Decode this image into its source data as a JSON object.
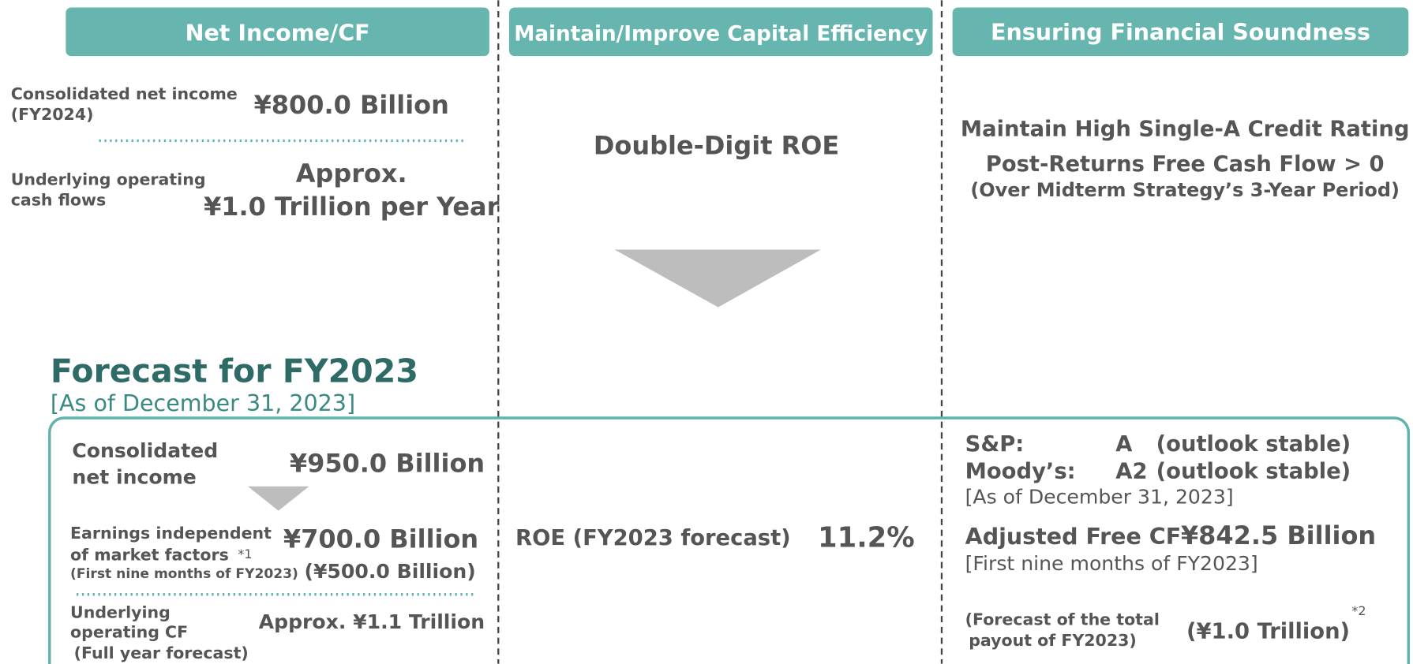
{
  "columns": [
    "Net Income/CF",
    "Maintain/Improve Capital Efficiency",
    "Ensuring Financial Soundness"
  ],
  "targets": {
    "net_income": {
      "label": [
        "Consolidated net income",
        "(FY2024)"
      ],
      "value": "¥800.0 Billion"
    },
    "operating_cf": {
      "label": [
        "Underlying operating",
        "cash flows"
      ],
      "value": [
        "Approx.",
        "¥1.0 Trillion per Year"
      ]
    },
    "roe": "Double-Digit ROE",
    "soundness": [
      "Maintain High Single-A Credit Rating",
      "Post-Returns Free Cash Flow > 0",
      "(Over Midterm Strategy’s 3-Year Period)"
    ]
  },
  "forecast": {
    "title": "Forecast for FY2023",
    "as_of": "[As of December 31, 2023]",
    "net_income": {
      "label": [
        "Consolidated",
        "net income"
      ],
      "value": "¥950.0 Billion"
    },
    "earnings": {
      "label": [
        "Earnings independent",
        "of market factors"
      ],
      "note": "*1",
      "period": "(First nine months of FY2023)",
      "value": "¥700.0 Billion",
      "period_value": "(¥500.0 Billion)"
    },
    "operating_cf": {
      "label": [
        "Underlying",
        "operating CF",
        "(Full year forecast)"
      ],
      "value": "Approx. ¥1.1 Trillion"
    },
    "roe": {
      "label": "ROE (FY2023 forecast)",
      "value": "11.2%"
    },
    "ratings": [
      {
        "agency": "S&P:",
        "rating": "A",
        "outlook": "(outlook stable)"
      },
      {
        "agency": "Moody’s:",
        "rating": "A2",
        "outlook": "(outlook stable)"
      }
    ],
    "ratings_as_of": "[As of December 31, 2023]",
    "free_cf": {
      "label": "Adjusted Free CF",
      "value": "¥842.5 Billion",
      "period": "[First nine months of FY2023]"
    },
    "payout": {
      "label": [
        "(Forecast of the total",
        "payout of FY2023)"
      ],
      "value": "(¥1.0 Trillion)",
      "note": "*2"
    }
  }
}
